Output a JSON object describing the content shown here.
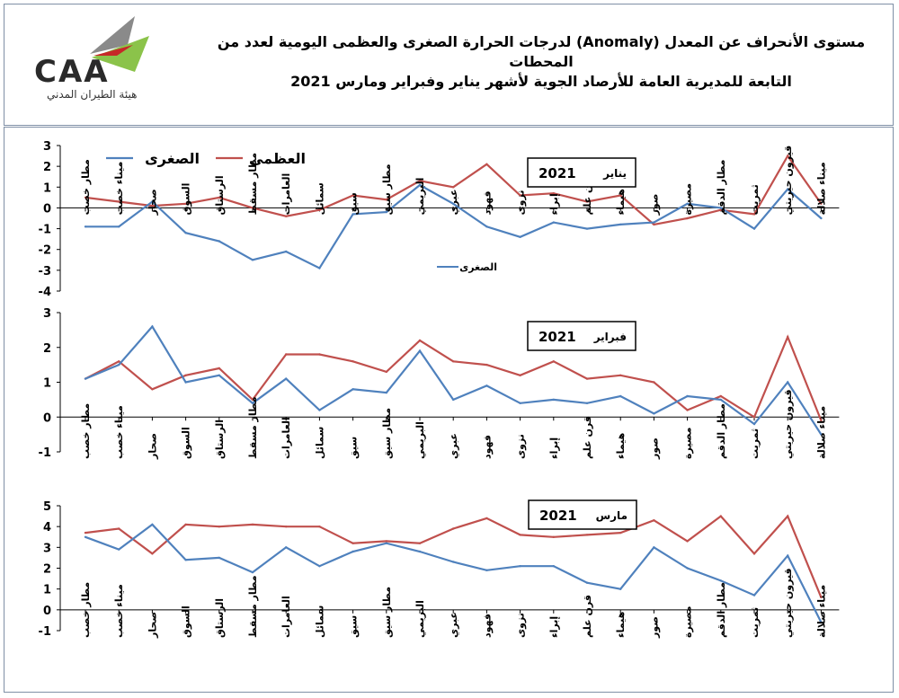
{
  "header": {
    "logo_text": "CAA",
    "logo_subtitle": "هيئة الطيران المدني",
    "title_line1": "مستوى الأنحراف عن المعدل (Anomaly) لدرجات الحرارة الصغرى والعظمى اليومية لعدد من المحطات",
    "title_line2": "التابعة للمديرية العامة للأرصاد الجوية لأشهر يناير وفبراير ومارس 2021"
  },
  "legend": {
    "max_label": "العظمى",
    "min_label": "الصغرى",
    "inner_legend_label": "الصغرى"
  },
  "colors": {
    "max": "#c0504d",
    "min": "#4f81bd"
  },
  "chart_data": [
    {
      "type": "line",
      "panel_label": "يناير",
      "panel_year": "2021",
      "categories": [
        "مطار خصب",
        "ميناء خصب",
        "صحار",
        "السوق",
        "الرستاق",
        "مطار مسقط",
        "العامرات",
        "سمائل",
        "سيق",
        "مطار سيق",
        "البريمي",
        "عبري",
        "فهود",
        "نزوى",
        "إبراء",
        "قرن علم",
        "هيماء",
        "صور",
        "مصيرة",
        "مطار الدقم",
        "ثمريت",
        "قيرون حيريتي",
        "ميناء صلالة"
      ],
      "ylim": [
        -4,
        3
      ],
      "yticks": [
        3,
        2,
        1,
        0,
        -1,
        -2,
        -3,
        -4
      ],
      "series": [
        {
          "name": "العظمى",
          "values": [
            0.5,
            0.3,
            0.1,
            0.2,
            0.5,
            0.0,
            -0.4,
            -0.1,
            0.6,
            0.4,
            1.3,
            1.0,
            2.1,
            0.6,
            0.7,
            0.3,
            0.6,
            -0.8,
            -0.5,
            -0.1,
            -0.3,
            2.5,
            0.2
          ]
        },
        {
          "name": "الصغرى",
          "values": [
            -0.9,
            -0.9,
            0.3,
            -1.2,
            -1.6,
            -2.5,
            -2.1,
            -2.9,
            -0.3,
            -0.2,
            1.1,
            0.2,
            -0.9,
            -1.4,
            -0.7,
            -1.0,
            -0.8,
            -0.7,
            0.2,
            0.0,
            -1.0,
            0.9,
            -0.5
          ]
        }
      ]
    },
    {
      "type": "line",
      "panel_label": "فبراير",
      "panel_year": "2021",
      "categories": [
        "مطار خصب",
        "ميناء خصب",
        "صحار",
        "السوق",
        "الرستاق",
        "مطار مسقط",
        "العامرات",
        "سمائل",
        "سيق",
        "مطار سيق",
        "البريمي",
        "عبري",
        "فهود",
        "نزوى",
        "إبراء",
        "قرن علم",
        "هيماء",
        "صور",
        "مصيرة",
        "مطار الدقم",
        "ثمريت",
        "قيرون حيريتي",
        "ميناء صلالة"
      ],
      "ylim": [
        -1,
        3
      ],
      "yticks": [
        3,
        2,
        1,
        0,
        -1
      ],
      "series": [
        {
          "name": "العظمى",
          "values": [
            1.1,
            1.6,
            0.8,
            1.2,
            1.4,
            0.5,
            1.8,
            1.8,
            1.6,
            1.3,
            2.2,
            1.6,
            1.5,
            1.2,
            1.6,
            1.1,
            1.2,
            1.0,
            0.2,
            0.6,
            0.0,
            2.3,
            -0.1
          ]
        },
        {
          "name": "الصغرى",
          "values": [
            1.1,
            1.5,
            2.6,
            1.0,
            1.2,
            0.4,
            1.1,
            0.2,
            0.8,
            0.7,
            1.9,
            0.5,
            0.9,
            0.4,
            0.5,
            0.4,
            0.6,
            0.1,
            0.6,
            0.5,
            -0.2,
            1.0,
            -0.5
          ]
        }
      ]
    },
    {
      "type": "line",
      "panel_label": "مارس",
      "panel_year": "2021",
      "categories": [
        "مطار خصب",
        "ميناء خصب",
        "صحار",
        "السوق",
        "الرستاق",
        "مطار مسقط",
        "العامرات",
        "سمائل",
        "سيق",
        "مطار سيق",
        "البريمي",
        "عبري",
        "فهود",
        "نزوى",
        "إبراء",
        "قرن علم",
        "هيماء",
        "صور",
        "مصيرة",
        "مطار الدقم",
        "ثمريت",
        "قيرون حيريتي",
        "ميناء صلالة"
      ],
      "ylim": [
        -1,
        5
      ],
      "yticks": [
        5,
        4,
        3,
        2,
        1,
        0,
        -1
      ],
      "series": [
        {
          "name": "العظمى",
          "values": [
            3.7,
            3.9,
            2.7,
            4.1,
            4.0,
            4.1,
            4.0,
            4.0,
            3.2,
            3.3,
            3.2,
            3.9,
            4.4,
            3.6,
            3.5,
            3.6,
            3.7,
            4.3,
            3.3,
            4.5,
            2.7,
            4.5,
            0.6
          ]
        },
        {
          "name": "الصغرى",
          "values": [
            3.5,
            2.9,
            4.1,
            2.4,
            2.5,
            1.8,
            3.0,
            2.1,
            2.8,
            3.2,
            2.8,
            2.3,
            1.9,
            2.1,
            2.1,
            1.3,
            1.0,
            3.0,
            2.0,
            1.4,
            0.7,
            2.6,
            -0.6
          ]
        }
      ]
    }
  ]
}
